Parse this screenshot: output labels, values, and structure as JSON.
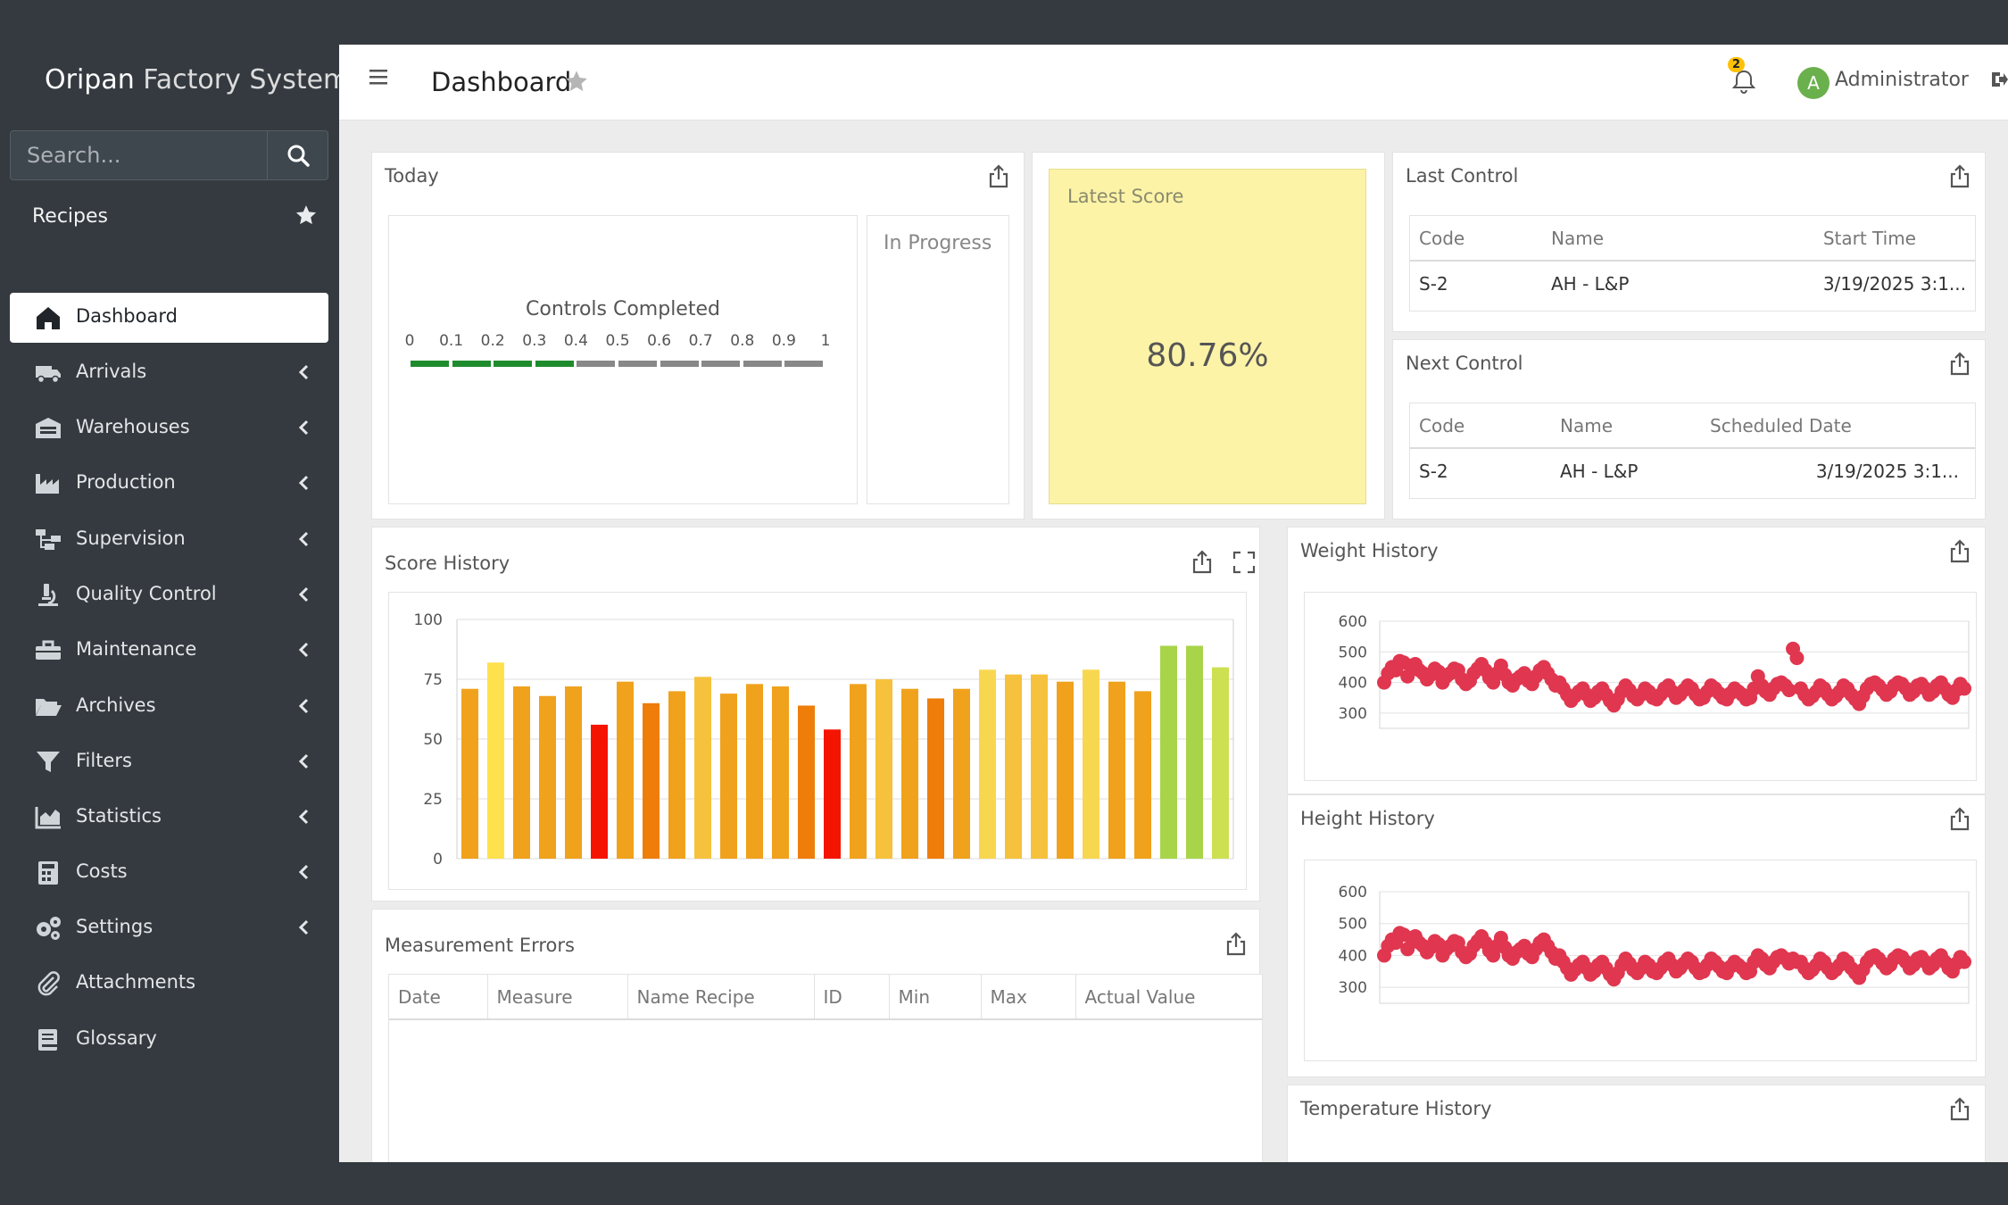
{
  "app": {
    "brand_part1": "Oripan",
    "brand_part2": " Factory System"
  },
  "search": {
    "placeholder": "Search..."
  },
  "sidebar": {
    "section_label": "Recipes",
    "items": [
      {
        "label": "Dashboard",
        "icon": "home-icon",
        "active": true
      },
      {
        "label": "Arrivals",
        "icon": "truck-icon"
      },
      {
        "label": "Warehouses",
        "icon": "warehouse-icon"
      },
      {
        "label": "Production",
        "icon": "industry-icon"
      },
      {
        "label": "Supervision",
        "icon": "sitemap-icon"
      },
      {
        "label": "Quality Control",
        "icon": "microscope-icon"
      },
      {
        "label": "Maintenance",
        "icon": "toolbox-icon"
      },
      {
        "label": "Archives",
        "icon": "folder-open-icon"
      },
      {
        "label": "Filters",
        "icon": "filter-icon"
      },
      {
        "label": "Statistics",
        "icon": "area-chart-icon"
      },
      {
        "label": "Costs",
        "icon": "calculator-icon"
      },
      {
        "label": "Settings",
        "icon": "cogs-icon"
      },
      {
        "label": "Attachments",
        "icon": "paperclip-icon"
      },
      {
        "label": "Glossary",
        "icon": "book-icon"
      }
    ]
  },
  "header": {
    "title": "Dashboard",
    "notification_count": "2",
    "user_initial": "A",
    "user_name": "Administrator"
  },
  "today": {
    "title": "Today",
    "gauge_title": "Controls Completed",
    "ticks": [
      "0",
      "0.1",
      "0.2",
      "0.3",
      "0.4",
      "0.5",
      "0.6",
      "0.7",
      "0.8",
      "0.9",
      "1"
    ],
    "completed_fraction": 0.4,
    "in_progress_label": "In Progress"
  },
  "latest_score": {
    "title": "Latest Score",
    "value": "80.76%"
  },
  "last_control": {
    "title": "Last Control",
    "columns": [
      "Code",
      "Name",
      "Start Time"
    ],
    "rows": [
      [
        "S-2",
        "AH - L&P",
        "3/19/2025 3:1..."
      ]
    ]
  },
  "next_control": {
    "title": "Next Control",
    "columns": [
      "Code",
      "Name",
      "Scheduled Date"
    ],
    "rows": [
      [
        "S-2",
        "AH - L&P",
        "3/19/2025 3:1..."
      ]
    ]
  },
  "score_history": {
    "title": "Score History"
  },
  "measurement_errors": {
    "title": "Measurement Errors",
    "columns": [
      "Date",
      "Measure",
      "Name Recipe",
      "ID",
      "Min",
      "Max",
      "Actual Value"
    ]
  },
  "weight_history": {
    "title": "Weight History"
  },
  "height_history": {
    "title": "Height History"
  },
  "temperature_history": {
    "title": "Temperature History"
  },
  "colors": {
    "sidebar": "#343a40",
    "completed": "#1e8c2d",
    "pending": "#888888",
    "score_bg": "#fcf3a7",
    "scatter": "#e0364f"
  },
  "chart_data": [
    {
      "type": "bar",
      "title": "Score History",
      "ylim": [
        0,
        100
      ],
      "yticks": [
        "0",
        "25",
        "50",
        "75",
        "100"
      ],
      "values": [
        71,
        82,
        72,
        68,
        72,
        56,
        74,
        65,
        70,
        76,
        69,
        73,
        72,
        64,
        54,
        73,
        75,
        71,
        67,
        71,
        79,
        77,
        77,
        74,
        79,
        74,
        70,
        89,
        89,
        80
      ]
    },
    {
      "type": "scatter",
      "title": "Weight History",
      "ylim": [
        250,
        600
      ],
      "yticks": [
        "300",
        "400",
        "500",
        "600"
      ],
      "y": [
        400,
        430,
        450,
        440,
        470,
        465,
        420,
        455,
        460,
        440,
        430,
        410,
        425,
        445,
        435,
        400,
        420,
        430,
        445,
        440,
        410,
        395,
        405,
        430,
        445,
        460,
        440,
        415,
        400,
        430,
        455,
        425,
        400,
        390,
        410,
        420,
        430,
        405,
        395,
        420,
        440,
        450,
        430,
        410,
        390,
        400,
        380,
        360,
        340,
        355,
        370,
        380,
        360,
        340,
        350,
        370,
        380,
        360,
        340,
        325,
        345,
        370,
        390,
        375,
        355,
        345,
        360,
        380,
        370,
        350,
        345,
        360,
        380,
        390,
        370,
        350,
        360,
        375,
        390,
        380,
        360,
        345,
        350,
        370,
        390,
        380,
        365,
        350,
        345,
        365,
        380,
        370,
        360,
        345,
        350,
        380,
        420,
        390,
        370,
        360,
        380,
        395,
        400,
        390,
        375,
        510,
        480,
        380,
        360,
        345,
        355,
        370,
        390,
        380,
        360,
        345,
        355,
        370,
        390,
        380,
        360,
        345,
        330,
        355,
        380,
        395,
        400,
        390,
        375,
        360,
        370,
        390,
        400,
        395,
        380,
        360,
        370,
        390,
        395,
        380,
        360,
        370,
        390,
        400,
        380,
        360,
        350,
        375,
        395,
        380
      ]
    },
    {
      "type": "scatter",
      "title": "Height History",
      "ylim": [
        250,
        600
      ],
      "yticks": [
        "300",
        "400",
        "500",
        "600"
      ],
      "y": [
        400,
        430,
        450,
        440,
        470,
        465,
        420,
        455,
        460,
        440,
        430,
        410,
        425,
        445,
        435,
        400,
        420,
        430,
        445,
        440,
        410,
        395,
        405,
        430,
        445,
        460,
        440,
        415,
        400,
        430,
        455,
        425,
        400,
        390,
        410,
        420,
        430,
        405,
        395,
        420,
        440,
        450,
        430,
        410,
        390,
        400,
        380,
        360,
        340,
        355,
        370,
        380,
        360,
        340,
        350,
        370,
        380,
        360,
        340,
        325,
        345,
        370,
        390,
        375,
        355,
        345,
        360,
        380,
        370,
        350,
        345,
        360,
        380,
        390,
        370,
        350,
        360,
        375,
        390,
        380,
        360,
        345,
        350,
        370,
        390,
        380,
        365,
        350,
        345,
        365,
        380,
        370,
        360,
        345,
        350,
        380,
        400,
        390,
        370,
        360,
        380,
        395,
        400,
        390,
        375,
        390,
        380,
        380,
        360,
        345,
        355,
        370,
        390,
        380,
        360,
        345,
        355,
        370,
        390,
        380,
        360,
        345,
        330,
        355,
        380,
        395,
        400,
        390,
        375,
        360,
        370,
        390,
        400,
        395,
        380,
        360,
        370,
        390,
        395,
        380,
        360,
        370,
        390,
        400,
        380,
        360,
        350,
        375,
        395,
        380
      ]
    }
  ]
}
